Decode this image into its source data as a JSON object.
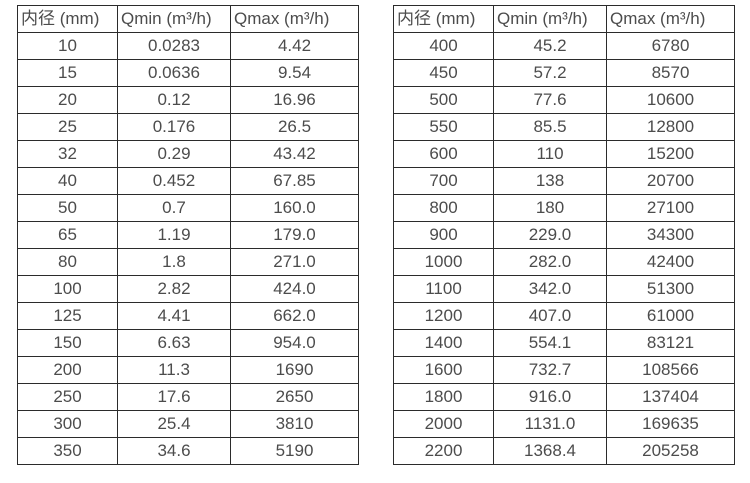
{
  "colors": {
    "background": "#ffffff",
    "border": "#2b2b2b",
    "text": "#4c4c4c"
  },
  "tables": [
    {
      "title": "small-diameter-flow-range",
      "columns": [
        "内径 (mm)",
        "Qmin (m³/h)",
        "Qmax (m³/h)"
      ],
      "rows": [
        [
          "10",
          "0.0283",
          "4.42"
        ],
        [
          "15",
          "0.0636",
          "9.54"
        ],
        [
          "20",
          "0.12",
          "16.96"
        ],
        [
          "25",
          "0.176",
          "26.5"
        ],
        [
          "32",
          "0.29",
          "43.42"
        ],
        [
          "40",
          "0.452",
          "67.85"
        ],
        [
          "50",
          "0.7",
          "160.0"
        ],
        [
          "65",
          "1.19",
          "179.0"
        ],
        [
          "80",
          "1.8",
          "271.0"
        ],
        [
          "100",
          "2.82",
          "424.0"
        ],
        [
          "125",
          "4.41",
          "662.0"
        ],
        [
          "150",
          "6.63",
          "954.0"
        ],
        [
          "200",
          "11.3",
          "1690"
        ],
        [
          "250",
          "17.6",
          "2650"
        ],
        [
          "300",
          "25.4",
          "3810"
        ],
        [
          "350",
          "34.6",
          "5190"
        ]
      ]
    },
    {
      "title": "large-diameter-flow-range",
      "columns": [
        "内径 (mm)",
        "Qmin (m³/h)",
        "Qmax (m³/h)"
      ],
      "rows": [
        [
          "400",
          "45.2",
          "6780"
        ],
        [
          "450",
          "57.2",
          "8570"
        ],
        [
          "500",
          "77.6",
          "10600"
        ],
        [
          "550",
          "85.5",
          "12800"
        ],
        [
          "600",
          "110",
          "15200"
        ],
        [
          "700",
          "138",
          "20700"
        ],
        [
          "800",
          "180",
          "27100"
        ],
        [
          "900",
          "229.0",
          "34300"
        ],
        [
          "1000",
          "282.0",
          "42400"
        ],
        [
          "1100",
          "342.0",
          "51300"
        ],
        [
          "1200",
          "407.0",
          "61000"
        ],
        [
          "1400",
          "554.1",
          "83121"
        ],
        [
          "1600",
          "732.7",
          "108566"
        ],
        [
          "1800",
          "916.0",
          "137404"
        ],
        [
          "2000",
          "1131.0",
          "169635"
        ],
        [
          "2200",
          "1368.4",
          "205258"
        ]
      ]
    }
  ]
}
